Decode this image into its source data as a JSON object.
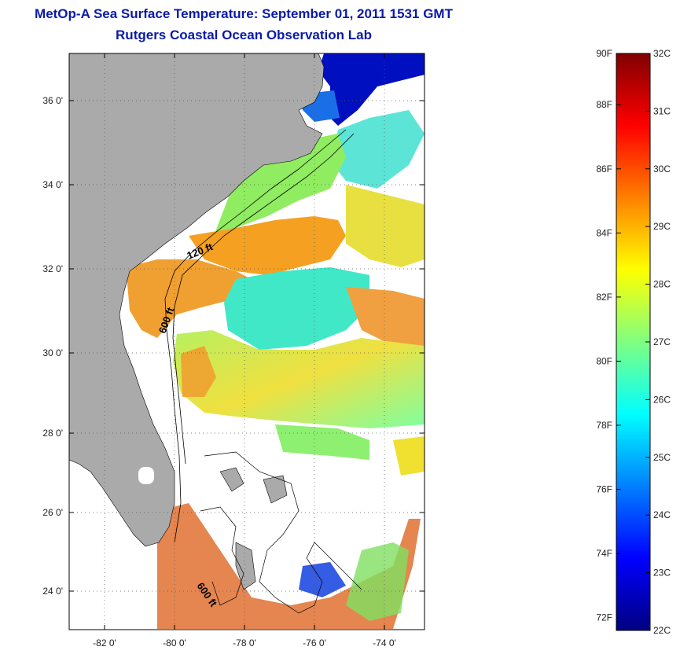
{
  "header": {
    "title": "MetOp-A Sea Surface Temperature:  September 01, 2011 1531 GMT",
    "subtitle": "Rutgers Coastal Ocean Observation Lab"
  },
  "map": {
    "lat_ticks": [
      "36 0'",
      "34 0'",
      "32 0'",
      "30 0'",
      "28 0'",
      "26 0'",
      "24 0'"
    ],
    "lon_ticks": [
      "-82 0'",
      "-80 0'",
      "-78 0'",
      "-76 0'",
      "-74 0'"
    ],
    "lat_range": [
      23,
      37.1
    ],
    "lon_range": [
      -83,
      -73
    ],
    "contour_labels": [
      "120 ft",
      "600 ft",
      "600 ft"
    ],
    "land_color": "#aaaaaa",
    "cloud_color": "#ffffff"
  },
  "colorbar": {
    "fahrenheit_labels": [
      "90F",
      "88F",
      "86F",
      "84F",
      "82F",
      "80F",
      "78F",
      "76F",
      "74F",
      "72F"
    ],
    "celsius_labels": [
      "32C",
      "31C",
      "30C",
      "29C",
      "28C",
      "27C",
      "26C",
      "25C",
      "24C",
      "23C",
      "22C"
    ],
    "range_c": [
      22,
      32
    ],
    "colors": [
      "#000080",
      "#0000ff",
      "#0080ff",
      "#00ffff",
      "#80ff80",
      "#ffff00",
      "#ff8000",
      "#ff0000",
      "#800000"
    ]
  }
}
